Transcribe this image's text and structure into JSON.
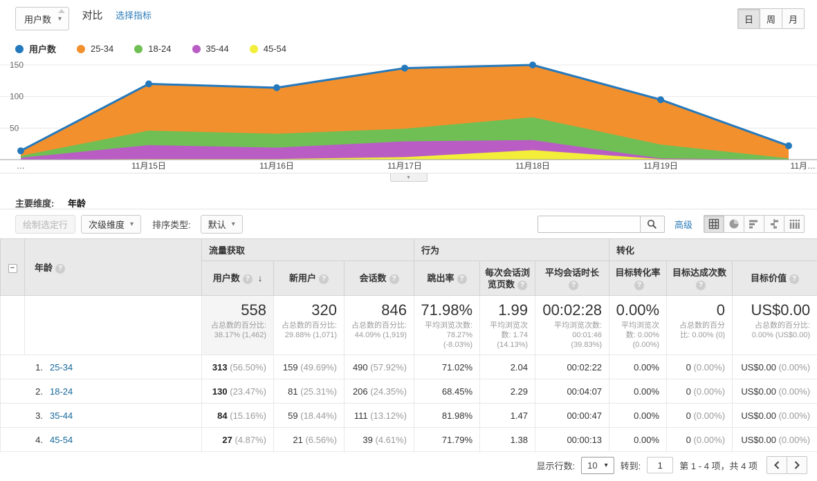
{
  "icons": {
    "caret_down": "▾",
    "sort_desc": "↓",
    "check": "✓",
    "collapse_minus": "−",
    "help": "?",
    "search": "search-magnifier",
    "prev": "chevron-left",
    "next": "chevron-right"
  },
  "colors": {
    "link_blue": "#2b7bb9",
    "table_link": "#15679a",
    "checkbox_blue": "#2a7de0",
    "header_bg": "#e9e9e9",
    "sorted_col_bg": "#f5f5f5"
  },
  "topbar": {
    "metric_dropdown": "用户数",
    "compare_label": "对比",
    "select_metric_link": "选择指标",
    "granularity": [
      "日",
      "周",
      "月"
    ],
    "granularity_selected": "日"
  },
  "legend": [
    {
      "label": "用户数",
      "color": "#2479bd"
    },
    {
      "label": "25-34",
      "color": "#f2902e"
    },
    {
      "label": "18-24",
      "color": "#6fbf55"
    },
    {
      "label": "35-44",
      "color": "#b95dc5"
    },
    {
      "label": "45-54",
      "color": "#f3ee3a"
    }
  ],
  "chart_data": {
    "type": "area",
    "stacked": true,
    "x": [
      "…",
      "11月15日",
      "11月16日",
      "11月17日",
      "11月18日",
      "11月19日",
      "11月…"
    ],
    "series": [
      {
        "name": "45-54",
        "color": "#f3ee3a",
        "values": [
          0,
          1,
          1,
          4,
          15,
          1,
          0
        ]
      },
      {
        "name": "35-44",
        "color": "#b95dc5",
        "values": [
          3,
          22,
          18,
          25,
          16,
          1,
          0
        ]
      },
      {
        "name": "18-24",
        "color": "#6fbf55",
        "values": [
          3,
          23,
          22,
          20,
          36,
          22,
          2
        ]
      },
      {
        "name": "25-34",
        "color": "#f2902e",
        "values": [
          8,
          74,
          73,
          96,
          83,
          71,
          20
        ]
      }
    ],
    "line": {
      "name": "用户数",
      "color": "#2479bd",
      "values": [
        14,
        120,
        114,
        145,
        150,
        95,
        22
      ]
    },
    "yticks": [
      50,
      100,
      150
    ],
    "ylim": [
      0,
      160
    ],
    "grid": true,
    "legend_position": "top-left"
  },
  "primary_dimension": {
    "label": "主要维度:",
    "value": "年龄"
  },
  "table_toolbar": {
    "plot_rows": "绘制选定行",
    "secondary_dim": "次级维度",
    "sort_type_label": "排序类型:",
    "sort_default": "默认",
    "advanced": "高级"
  },
  "table": {
    "dim_header": "年龄",
    "groups": [
      "流量获取",
      "行为",
      "转化"
    ],
    "columns": [
      "用户数",
      "新用户",
      "会话数",
      "跳出率",
      "每次会话浏览页数",
      "平均会话时长",
      "目标转化率",
      "目标达成次数",
      "目标价值"
    ],
    "summary": [
      {
        "value": "558",
        "sub": "占总数的百分比: 38.17% (1,462)"
      },
      {
        "value": "320",
        "sub": "占总数的百分比: 29.88% (1,071)"
      },
      {
        "value": "846",
        "sub": "占总数的百分比: 44.09% (1,919)"
      },
      {
        "value": "71.98%",
        "sub": "平均浏览次数: 78.27% (-8.03%)"
      },
      {
        "value": "1.99",
        "sub": "平均浏览次数: 1.74 (14.13%)"
      },
      {
        "value": "00:02:28",
        "sub": "平均浏览次数: 00:01:46 (39.83%)"
      },
      {
        "value": "0.00%",
        "sub": "平均浏览次数: 0.00% (0.00%)"
      },
      {
        "value": "0",
        "sub": "占总数的百分比: 0.00% (0)"
      },
      {
        "value": "US$0.00",
        "sub": "占总数的百分比: 0.00% (US$0.00)"
      }
    ],
    "rows": [
      {
        "index": "1.",
        "label": "25-34",
        "users": "313",
        "users_pct": "(56.50%)",
        "new_users": "159",
        "new_users_pct": "(49.69%)",
        "sessions": "490",
        "sessions_pct": "(57.92%)",
        "bounce": "71.02%",
        "pages": "2.04",
        "duration": "00:02:22",
        "conv_rate": "0.00%",
        "completions": "0",
        "completions_pct": "(0.00%)",
        "value": "US$0.00",
        "value_pct": "(0.00%)"
      },
      {
        "index": "2.",
        "label": "18-24",
        "users": "130",
        "users_pct": "(23.47%)",
        "new_users": "81",
        "new_users_pct": "(25.31%)",
        "sessions": "206",
        "sessions_pct": "(24.35%)",
        "bounce": "68.45%",
        "pages": "2.29",
        "duration": "00:04:07",
        "conv_rate": "0.00%",
        "completions": "0",
        "completions_pct": "(0.00%)",
        "value": "US$0.00",
        "value_pct": "(0.00%)"
      },
      {
        "index": "3.",
        "label": "35-44",
        "users": "84",
        "users_pct": "(15.16%)",
        "new_users": "59",
        "new_users_pct": "(18.44%)",
        "sessions": "111",
        "sessions_pct": "(13.12%)",
        "bounce": "81.98%",
        "pages": "1.47",
        "duration": "00:00:47",
        "conv_rate": "0.00%",
        "completions": "0",
        "completions_pct": "(0.00%)",
        "value": "US$0.00",
        "value_pct": "(0.00%)"
      },
      {
        "index": "4.",
        "label": "45-54",
        "users": "27",
        "users_pct": "(4.87%)",
        "new_users": "21",
        "new_users_pct": "(6.56%)",
        "sessions": "39",
        "sessions_pct": "(4.61%)",
        "bounce": "71.79%",
        "pages": "1.38",
        "duration": "00:00:13",
        "conv_rate": "0.00%",
        "completions": "0",
        "completions_pct": "(0.00%)",
        "value": "US$0.00",
        "value_pct": "(0.00%)"
      }
    ]
  },
  "footer": {
    "rows_label": "显示行数:",
    "rows_value": "10",
    "goto_label": "转到:",
    "goto_value": "1",
    "range_text": "第 1 - 4 项，共 4 项"
  }
}
